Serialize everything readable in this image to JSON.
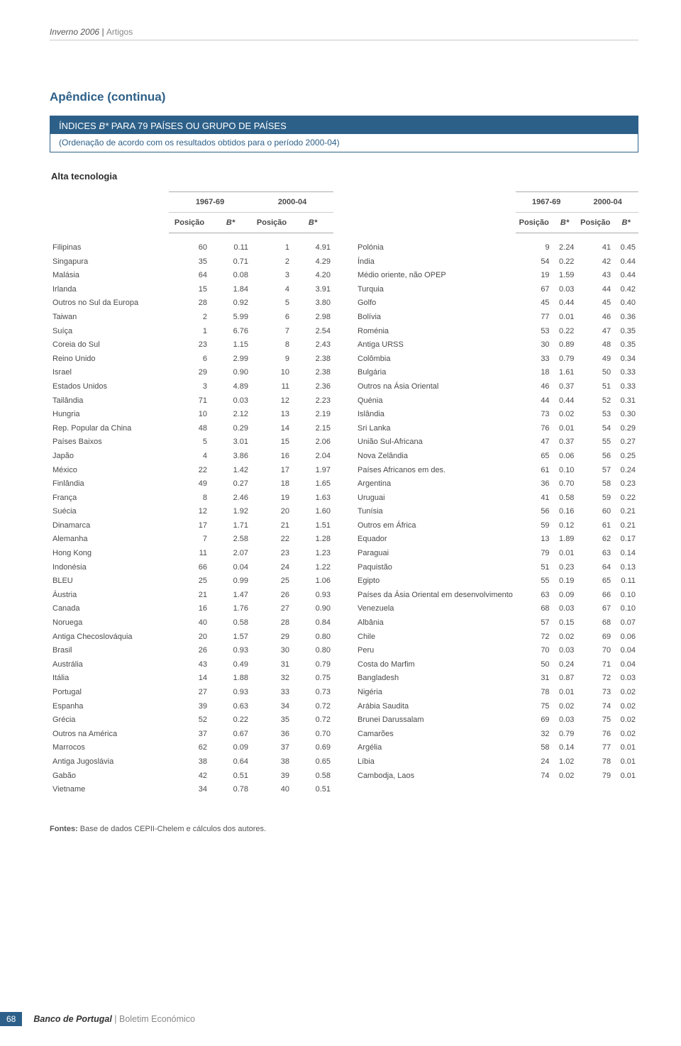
{
  "header": {
    "issue": "Inverno 2006",
    "sep": " | ",
    "section": "Artigos"
  },
  "title": "Apêndice (continua)",
  "banner": {
    "title_pre": "ÍNDICES ",
    "title_it": "B*",
    "title_post": " PARA 79 PAÍSES OU GRUPO DE PAÍSES",
    "sub": "(Ordenação de acordo com os resultados obtidos para o período 2000-04)"
  },
  "subsection": "Alta tecnologia",
  "periods": {
    "p1": "1967-69",
    "p2": "2000-04"
  },
  "col": {
    "pos": "Posição",
    "b": "B*"
  },
  "left": [
    {
      "n": "Filipinas",
      "a": "60",
      "b": "0.11",
      "c": "1",
      "d": "4.91"
    },
    {
      "n": "Singapura",
      "a": "35",
      "b": "0.71",
      "c": "2",
      "d": "4.29"
    },
    {
      "n": "Malásia",
      "a": "64",
      "b": "0.08",
      "c": "3",
      "d": "4.20"
    },
    {
      "n": "Irlanda",
      "a": "15",
      "b": "1.84",
      "c": "4",
      "d": "3.91"
    },
    {
      "n": "Outros no Sul da Europa",
      "a": "28",
      "b": "0.92",
      "c": "5",
      "d": "3.80"
    },
    {
      "n": "Taiwan",
      "a": "2",
      "b": "5.99",
      "c": "6",
      "d": "2.98"
    },
    {
      "n": "Suíça",
      "a": "1",
      "b": "6.76",
      "c": "7",
      "d": "2.54"
    },
    {
      "n": "Coreia do Sul",
      "a": "23",
      "b": "1.15",
      "c": "8",
      "d": "2.43"
    },
    {
      "n": "Reino Unido",
      "a": "6",
      "b": "2.99",
      "c": "9",
      "d": "2.38"
    },
    {
      "n": "Israel",
      "a": "29",
      "b": "0.90",
      "c": "10",
      "d": "2.38"
    },
    {
      "n": "Estados Unidos",
      "a": "3",
      "b": "4.89",
      "c": "11",
      "d": "2.36"
    },
    {
      "n": "Tailândia",
      "a": "71",
      "b": "0.03",
      "c": "12",
      "d": "2.23"
    },
    {
      "n": "Hungria",
      "a": "10",
      "b": "2.12",
      "c": "13",
      "d": "2.19"
    },
    {
      "n": "Rep. Popular da China",
      "a": "48",
      "b": "0.29",
      "c": "14",
      "d": "2.15"
    },
    {
      "n": "Países Baixos",
      "a": "5",
      "b": "3.01",
      "c": "15",
      "d": "2.06"
    },
    {
      "n": "Japão",
      "a": "4",
      "b": "3.86",
      "c": "16",
      "d": "2.04"
    },
    {
      "n": "México",
      "a": "22",
      "b": "1.42",
      "c": "17",
      "d": "1.97"
    },
    {
      "n": "Finlândia",
      "a": "49",
      "b": "0.27",
      "c": "18",
      "d": "1.65"
    },
    {
      "n": "França",
      "a": "8",
      "b": "2.46",
      "c": "19",
      "d": "1.63"
    },
    {
      "n": "Suécia",
      "a": "12",
      "b": "1.92",
      "c": "20",
      "d": "1.60"
    },
    {
      "n": "Dinamarca",
      "a": "17",
      "b": "1.71",
      "c": "21",
      "d": "1.51"
    },
    {
      "n": "Alemanha",
      "a": "7",
      "b": "2.58",
      "c": "22",
      "d": "1.28"
    },
    {
      "n": "Hong Kong",
      "a": "11",
      "b": "2.07",
      "c": "23",
      "d": "1.23"
    },
    {
      "n": "Indonésia",
      "a": "66",
      "b": "0.04",
      "c": "24",
      "d": "1.22"
    },
    {
      "n": "BLEU",
      "a": "25",
      "b": "0.99",
      "c": "25",
      "d": "1.06"
    },
    {
      "n": "Áustria",
      "a": "21",
      "b": "1.47",
      "c": "26",
      "d": "0.93"
    },
    {
      "n": "Canada",
      "a": "16",
      "b": "1.76",
      "c": "27",
      "d": "0.90"
    },
    {
      "n": "Noruega",
      "a": "40",
      "b": "0.58",
      "c": "28",
      "d": "0.84"
    },
    {
      "n": "Antiga Checoslováquia",
      "a": "20",
      "b": "1.57",
      "c": "29",
      "d": "0.80"
    },
    {
      "n": "Brasil",
      "a": "26",
      "b": "0.93",
      "c": "30",
      "d": "0.80"
    },
    {
      "n": "Austrália",
      "a": "43",
      "b": "0.49",
      "c": "31",
      "d": "0.79"
    },
    {
      "n": "Itália",
      "a": "14",
      "b": "1.88",
      "c": "32",
      "d": "0.75"
    },
    {
      "n": "Portugal",
      "a": "27",
      "b": "0.93",
      "c": "33",
      "d": "0.73"
    },
    {
      "n": "Espanha",
      "a": "39",
      "b": "0.63",
      "c": "34",
      "d": "0.72"
    },
    {
      "n": "Grécia",
      "a": "52",
      "b": "0.22",
      "c": "35",
      "d": "0.72"
    },
    {
      "n": "Outros na América",
      "a": "37",
      "b": "0.67",
      "c": "36",
      "d": "0.70"
    },
    {
      "n": "Marrocos",
      "a": "62",
      "b": "0.09",
      "c": "37",
      "d": "0.69"
    },
    {
      "n": "Antiga Jugoslávia",
      "a": "38",
      "b": "0.64",
      "c": "38",
      "d": "0.65"
    },
    {
      "n": "Gabão",
      "a": "42",
      "b": "0.51",
      "c": "39",
      "d": "0.58"
    },
    {
      "n": "Vietname",
      "a": "34",
      "b": "0.78",
      "c": "40",
      "d": "0.51"
    }
  ],
  "right": [
    {
      "n": "Polónia",
      "a": "9",
      "b": "2.24",
      "c": "41",
      "d": "0.45"
    },
    {
      "n": "Índia",
      "a": "54",
      "b": "0.22",
      "c": "42",
      "d": "0.44"
    },
    {
      "n": "Médio oriente, não OPEP",
      "a": "19",
      "b": "1.59",
      "c": "43",
      "d": "0.44"
    },
    {
      "n": "Turquia",
      "a": "67",
      "b": "0.03",
      "c": "44",
      "d": "0.42"
    },
    {
      "n": "Golfo",
      "a": "45",
      "b": "0.44",
      "c": "45",
      "d": "0.40"
    },
    {
      "n": "Bolívia",
      "a": "77",
      "b": "0.01",
      "c": "46",
      "d": "0.36"
    },
    {
      "n": "Roménia",
      "a": "53",
      "b": "0.22",
      "c": "47",
      "d": "0.35"
    },
    {
      "n": "Antiga URSS",
      "a": "30",
      "b": "0.89",
      "c": "48",
      "d": "0.35"
    },
    {
      "n": "Colômbia",
      "a": "33",
      "b": "0.79",
      "c": "49",
      "d": "0.34"
    },
    {
      "n": "Bulgária",
      "a": "18",
      "b": "1.61",
      "c": "50",
      "d": "0.33"
    },
    {
      "n": "Outros na Ásia Oriental",
      "a": "46",
      "b": "0.37",
      "c": "51",
      "d": "0.33"
    },
    {
      "n": "Quénia",
      "a": "44",
      "b": "0.44",
      "c": "52",
      "d": "0.31"
    },
    {
      "n": "Islândia",
      "a": "73",
      "b": "0.02",
      "c": "53",
      "d": "0.30"
    },
    {
      "n": "Sri Lanka",
      "a": "76",
      "b": "0.01",
      "c": "54",
      "d": "0.29"
    },
    {
      "n": "União Sul-Africana",
      "a": "47",
      "b": "0.37",
      "c": "55",
      "d": "0.27"
    },
    {
      "n": "Nova Zelândia",
      "a": "65",
      "b": "0.06",
      "c": "56",
      "d": "0.25"
    },
    {
      "n": "Países Africanos em des.",
      "a": "61",
      "b": "0.10",
      "c": "57",
      "d": "0.24"
    },
    {
      "n": "Argentina",
      "a": "36",
      "b": "0.70",
      "c": "58",
      "d": "0.23"
    },
    {
      "n": "Uruguai",
      "a": "41",
      "b": "0.58",
      "c": "59",
      "d": "0.22"
    },
    {
      "n": "Tunísia",
      "a": "56",
      "b": "0.16",
      "c": "60",
      "d": "0.21"
    },
    {
      "n": "Outros em África",
      "a": "59",
      "b": "0.12",
      "c": "61",
      "d": "0.21"
    },
    {
      "n": "Equador",
      "a": "13",
      "b": "1.89",
      "c": "62",
      "d": "0.17"
    },
    {
      "n": "Paraguai",
      "a": "79",
      "b": "0.01",
      "c": "63",
      "d": "0.14"
    },
    {
      "n": "Paquistão",
      "a": "51",
      "b": "0.23",
      "c": "64",
      "d": "0.13"
    },
    {
      "n": "Egipto",
      "a": "55",
      "b": "0.19",
      "c": "65",
      "d": "0.11"
    },
    {
      "n": "Países da Ásia Oriental em desenvolvimento",
      "a": "63",
      "b": "0.09",
      "c": "66",
      "d": "0.10"
    },
    {
      "n": "Venezuela",
      "a": "68",
      "b": "0.03",
      "c": "67",
      "d": "0.10"
    },
    {
      "n": "Albânia",
      "a": "57",
      "b": "0.15",
      "c": "68",
      "d": "0.07"
    },
    {
      "n": "Chile",
      "a": "72",
      "b": "0.02",
      "c": "69",
      "d": "0.06"
    },
    {
      "n": "Peru",
      "a": "70",
      "b": "0.03",
      "c": "70",
      "d": "0.04"
    },
    {
      "n": "Costa do Marfim",
      "a": "50",
      "b": "0.24",
      "c": "71",
      "d": "0.04"
    },
    {
      "n": "Bangladesh",
      "a": "31",
      "b": "0.87",
      "c": "72",
      "d": "0.03"
    },
    {
      "n": "Nigéria",
      "a": "78",
      "b": "0.01",
      "c": "73",
      "d": "0.02"
    },
    {
      "n": "Arábia Saudita",
      "a": "75",
      "b": "0.02",
      "c": "74",
      "d": "0.02"
    },
    {
      "n": "Brunei Darussalam",
      "a": "69",
      "b": "0.03",
      "c": "75",
      "d": "0.02"
    },
    {
      "n": "Camarões",
      "a": "32",
      "b": "0.79",
      "c": "76",
      "d": "0.02"
    },
    {
      "n": "Argélia",
      "a": "58",
      "b": "0.14",
      "c": "77",
      "d": "0.01"
    },
    {
      "n": "Líbia",
      "a": "24",
      "b": "1.02",
      "c": "78",
      "d": "0.01"
    },
    {
      "n": "Cambodja, Laos",
      "a": "74",
      "b": "0.02",
      "c": "79",
      "d": "0.01"
    }
  ],
  "sources": {
    "label": "Fontes:",
    "text": " Base de dados CEPII-Chelem e cálculos dos autores."
  },
  "footer": {
    "page": "68",
    "main": "Banco de Portugal",
    "sep": " | ",
    "sub": "Boletim Económico"
  }
}
